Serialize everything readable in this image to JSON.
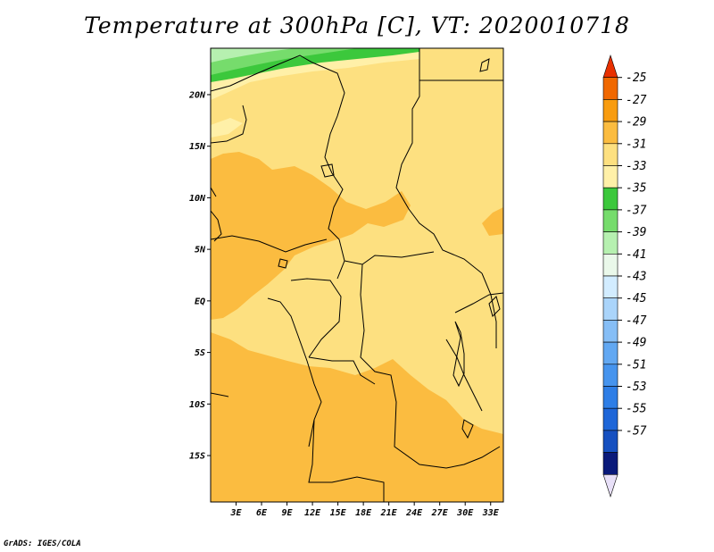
{
  "title": "Temperature at 300hPa [C], VT: 2020010718",
  "credit": "GrADS: IGES/COLA",
  "map": {
    "lat_range": [
      -19.5,
      24.5
    ],
    "lon_range": [
      0,
      34.5
    ],
    "lat_ticks": [
      {
        "value": 20,
        "label": "20N"
      },
      {
        "value": 15,
        "label": "15N"
      },
      {
        "value": 10,
        "label": "10N"
      },
      {
        "value": 5,
        "label": "5N"
      },
      {
        "value": 0,
        "label": "EQ"
      },
      {
        "value": -5,
        "label": "5S"
      },
      {
        "value": -10,
        "label": "10S"
      },
      {
        "value": -15,
        "label": "15S"
      }
    ],
    "lon_ticks": [
      {
        "value": 3,
        "label": "3E"
      },
      {
        "value": 6,
        "label": "6E"
      },
      {
        "value": 9,
        "label": "9E"
      },
      {
        "value": 12,
        "label": "12E"
      },
      {
        "value": 15,
        "label": "15E"
      },
      {
        "value": 18,
        "label": "18E"
      },
      {
        "value": 21,
        "label": "21E"
      },
      {
        "value": 24,
        "label": "24E"
      },
      {
        "value": 27,
        "label": "27E"
      },
      {
        "value": 30,
        "label": "30E"
      },
      {
        "value": 33,
        "label": "33E"
      }
    ]
  },
  "colorbar": {
    "labels": [
      "-25",
      "-27",
      "-29",
      "-31",
      "-33",
      "-35",
      "-37",
      "-39",
      "-41",
      "-43",
      "-45",
      "-47",
      "-49",
      "-51",
      "-53",
      "-55",
      "-57"
    ],
    "colors": [
      "#e8e0f8",
      "#0a1a7a",
      "#1650c0",
      "#1e66d8",
      "#2e7ee6",
      "#4694ee",
      "#62a8f2",
      "#86bef6",
      "#aad4fa",
      "#d2ecff",
      "#eaf8ea",
      "#b6f0b0",
      "#76dc6c",
      "#3cc83c",
      "#fff0a8",
      "#fde080",
      "#fbbc40",
      "#f89c10",
      "#f06800",
      "#e83000"
    ]
  },
  "colors": {
    "c33": "#fde080",
    "c31": "#fbbc40",
    "c35": "#fff0a8",
    "c37": "#3cc83c",
    "c39": "#76dc6c",
    "c41": "#b6f0b0"
  }
}
